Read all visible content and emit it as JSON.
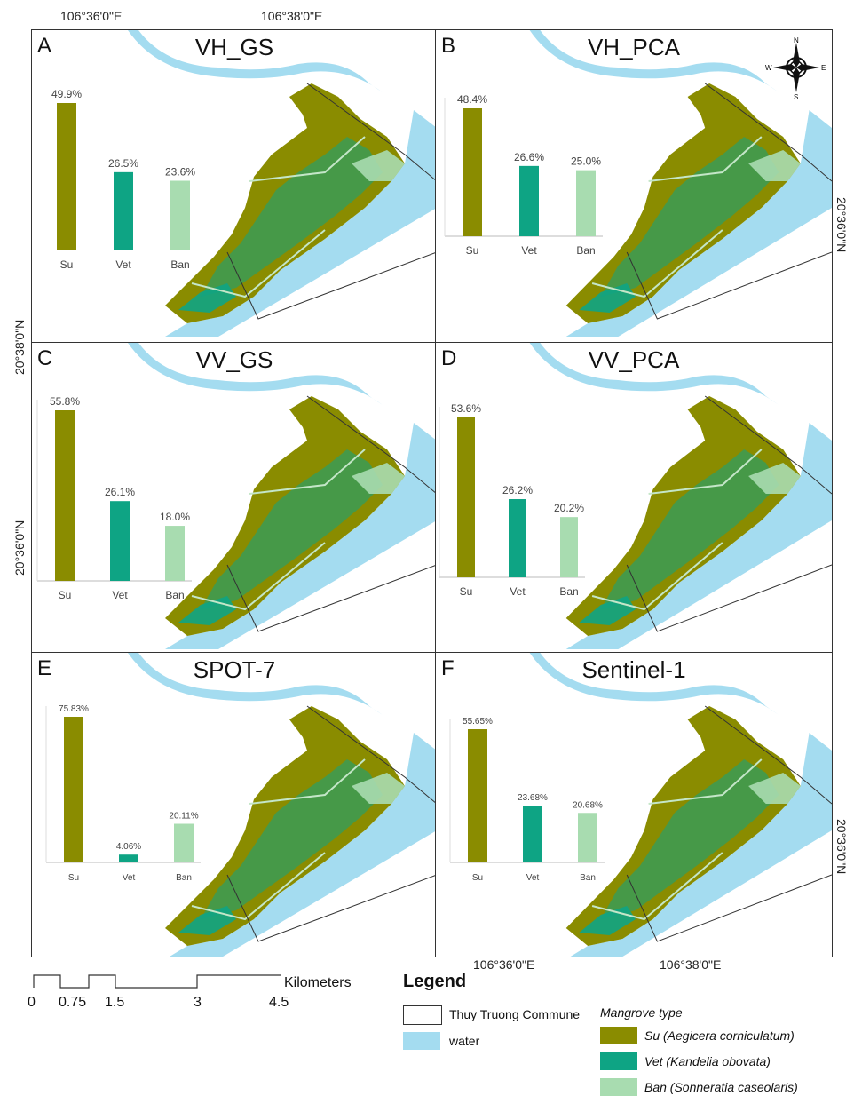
{
  "top_coords": [
    "106°36'0\"E",
    "106°38'0\"E"
  ],
  "bottom_coords": [
    "106°36'0\"E",
    "106°38'0\"E"
  ],
  "left_coords": [
    "20°38'0\"N",
    "20°36'0\"N"
  ],
  "right_coords": [
    "20°36'0\"N",
    "20°36'0\"N"
  ],
  "compass": {
    "n": "N",
    "s": "S",
    "e": "E",
    "w": "W"
  },
  "panels": [
    {
      "letter": "A",
      "title": "VH_GS",
      "values": [
        49.9,
        26.5,
        23.6
      ],
      "labels": [
        "49.9%",
        "26.5%",
        "23.6%"
      ]
    },
    {
      "letter": "B",
      "title": "VH_PCA",
      "values": [
        48.4,
        26.6,
        25.0
      ],
      "labels": [
        "48.4%",
        "26.6%",
        "25.0%"
      ]
    },
    {
      "letter": "C",
      "title": "VV_GS",
      "values": [
        55.8,
        26.1,
        18.0
      ],
      "labels": [
        "55.8%",
        "26.1%",
        "18.0%"
      ]
    },
    {
      "letter": "D",
      "title": "VV_PCA",
      "values": [
        53.6,
        26.2,
        20.2
      ],
      "labels": [
        "53.6%",
        "26.2%",
        "20.2%"
      ]
    },
    {
      "letter": "E",
      "title": "SPOT-7",
      "values": [
        75.83,
        4.06,
        20.11
      ],
      "labels": [
        "75.83%",
        "4.06%",
        "20.11%"
      ]
    },
    {
      "letter": "F",
      "title": "Sentinel-1",
      "values": [
        55.65,
        23.68,
        20.68
      ],
      "labels": [
        "55.65%",
        "23.68%",
        "20.68%"
      ]
    }
  ],
  "categories": [
    "Su",
    "Vet",
    "Ban"
  ],
  "colors": {
    "su": "#8a8c00",
    "vet": "#0ea484",
    "ban": "#a8dcb0",
    "water": "#a4dcf0",
    "mangrove_light": "#c4e6c8"
  },
  "scale_bar": {
    "labels": [
      "0",
      "0.75",
      "1.5",
      "3",
      "4.5"
    ],
    "unit": "Kilometers"
  },
  "legend": {
    "title": "Legend",
    "commune": "Thuy Truong Commune",
    "water": "water",
    "mangrove_type": "Mangrove type",
    "su": "Su (Aegicera corniculatum)",
    "vet": "Vet (Kandelia obovata)",
    "ban": "Ban (Sonneratia caseolaris)"
  },
  "chart_data": [
    {
      "type": "bar",
      "title": "VH_GS",
      "categories": [
        "Su",
        "Vet",
        "Ban"
      ],
      "values": [
        49.9,
        26.5,
        23.6
      ]
    },
    {
      "type": "bar",
      "title": "VH_PCA",
      "categories": [
        "Su",
        "Vet",
        "Ban"
      ],
      "values": [
        48.4,
        26.6,
        25.0
      ]
    },
    {
      "type": "bar",
      "title": "VV_GS",
      "categories": [
        "Su",
        "Vet",
        "Ban"
      ],
      "values": [
        55.8,
        26.1,
        18.0
      ]
    },
    {
      "type": "bar",
      "title": "VV_PCA",
      "categories": [
        "Su",
        "Vet",
        "Ban"
      ],
      "values": [
        53.6,
        26.2,
        20.2
      ]
    },
    {
      "type": "bar",
      "title": "SPOT-7",
      "categories": [
        "Su",
        "Vet",
        "Ban"
      ],
      "values": [
        75.83,
        4.06,
        20.11
      ]
    },
    {
      "type": "bar",
      "title": "Sentinel-1",
      "categories": [
        "Su",
        "Vet",
        "Ban"
      ],
      "values": [
        55.65,
        23.68,
        20.68
      ]
    }
  ]
}
